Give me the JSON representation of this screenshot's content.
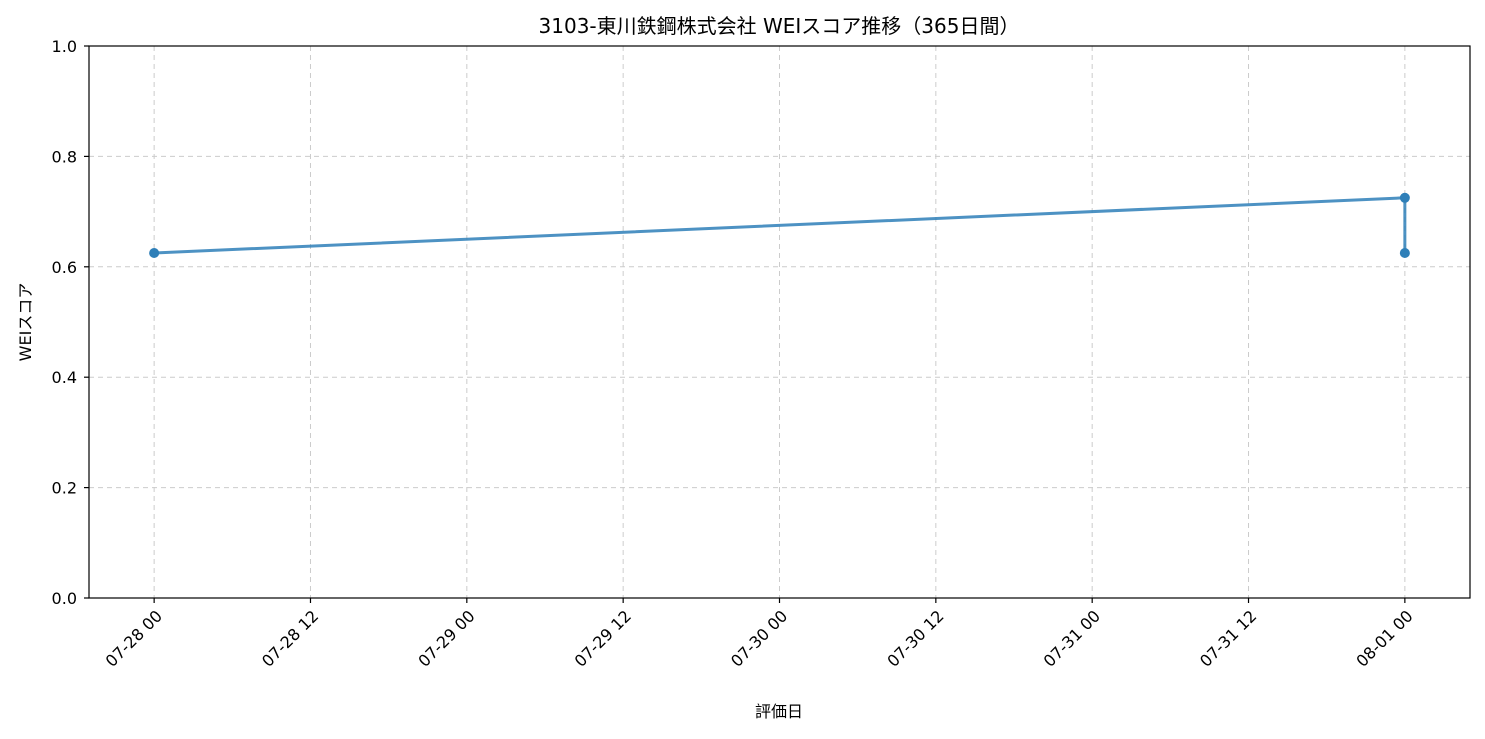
{
  "chart_data": {
    "type": "line",
    "title": "3103-東川鉄鋼株式会社 WEIスコア推移（365日間）",
    "xlabel": "評価日",
    "ylabel": "WEIスコア",
    "ylim": [
      0.0,
      1.0
    ],
    "yticks": [
      0.0,
      0.2,
      0.4,
      0.6,
      0.8,
      1.0
    ],
    "ytick_labels": [
      "0.0",
      "0.2",
      "0.4",
      "0.6",
      "0.8",
      "1.0"
    ],
    "xlim": [
      "2025-07-27T19:00",
      "2025-08-01T05:00"
    ],
    "xticks": [
      "2025-07-28T00:00",
      "2025-07-28T12:00",
      "2025-07-29T00:00",
      "2025-07-29T12:00",
      "2025-07-30T00:00",
      "2025-07-30T12:00",
      "2025-07-31T00:00",
      "2025-07-31T12:00",
      "2025-08-01T00:00"
    ],
    "xtick_labels": [
      "07-28 00",
      "07-28 12",
      "07-29 00",
      "07-29 12",
      "07-30 00",
      "07-30 12",
      "07-31 00",
      "07-31 12",
      "08-01 00"
    ],
    "grid": true,
    "series": [
      {
        "color": "#2e7fb8",
        "x": [
          "2025-07-28T00:00",
          "2025-08-01T00:00",
          "2025-08-01T00:00"
        ],
        "y": [
          0.625,
          0.725,
          0.625
        ]
      }
    ]
  }
}
